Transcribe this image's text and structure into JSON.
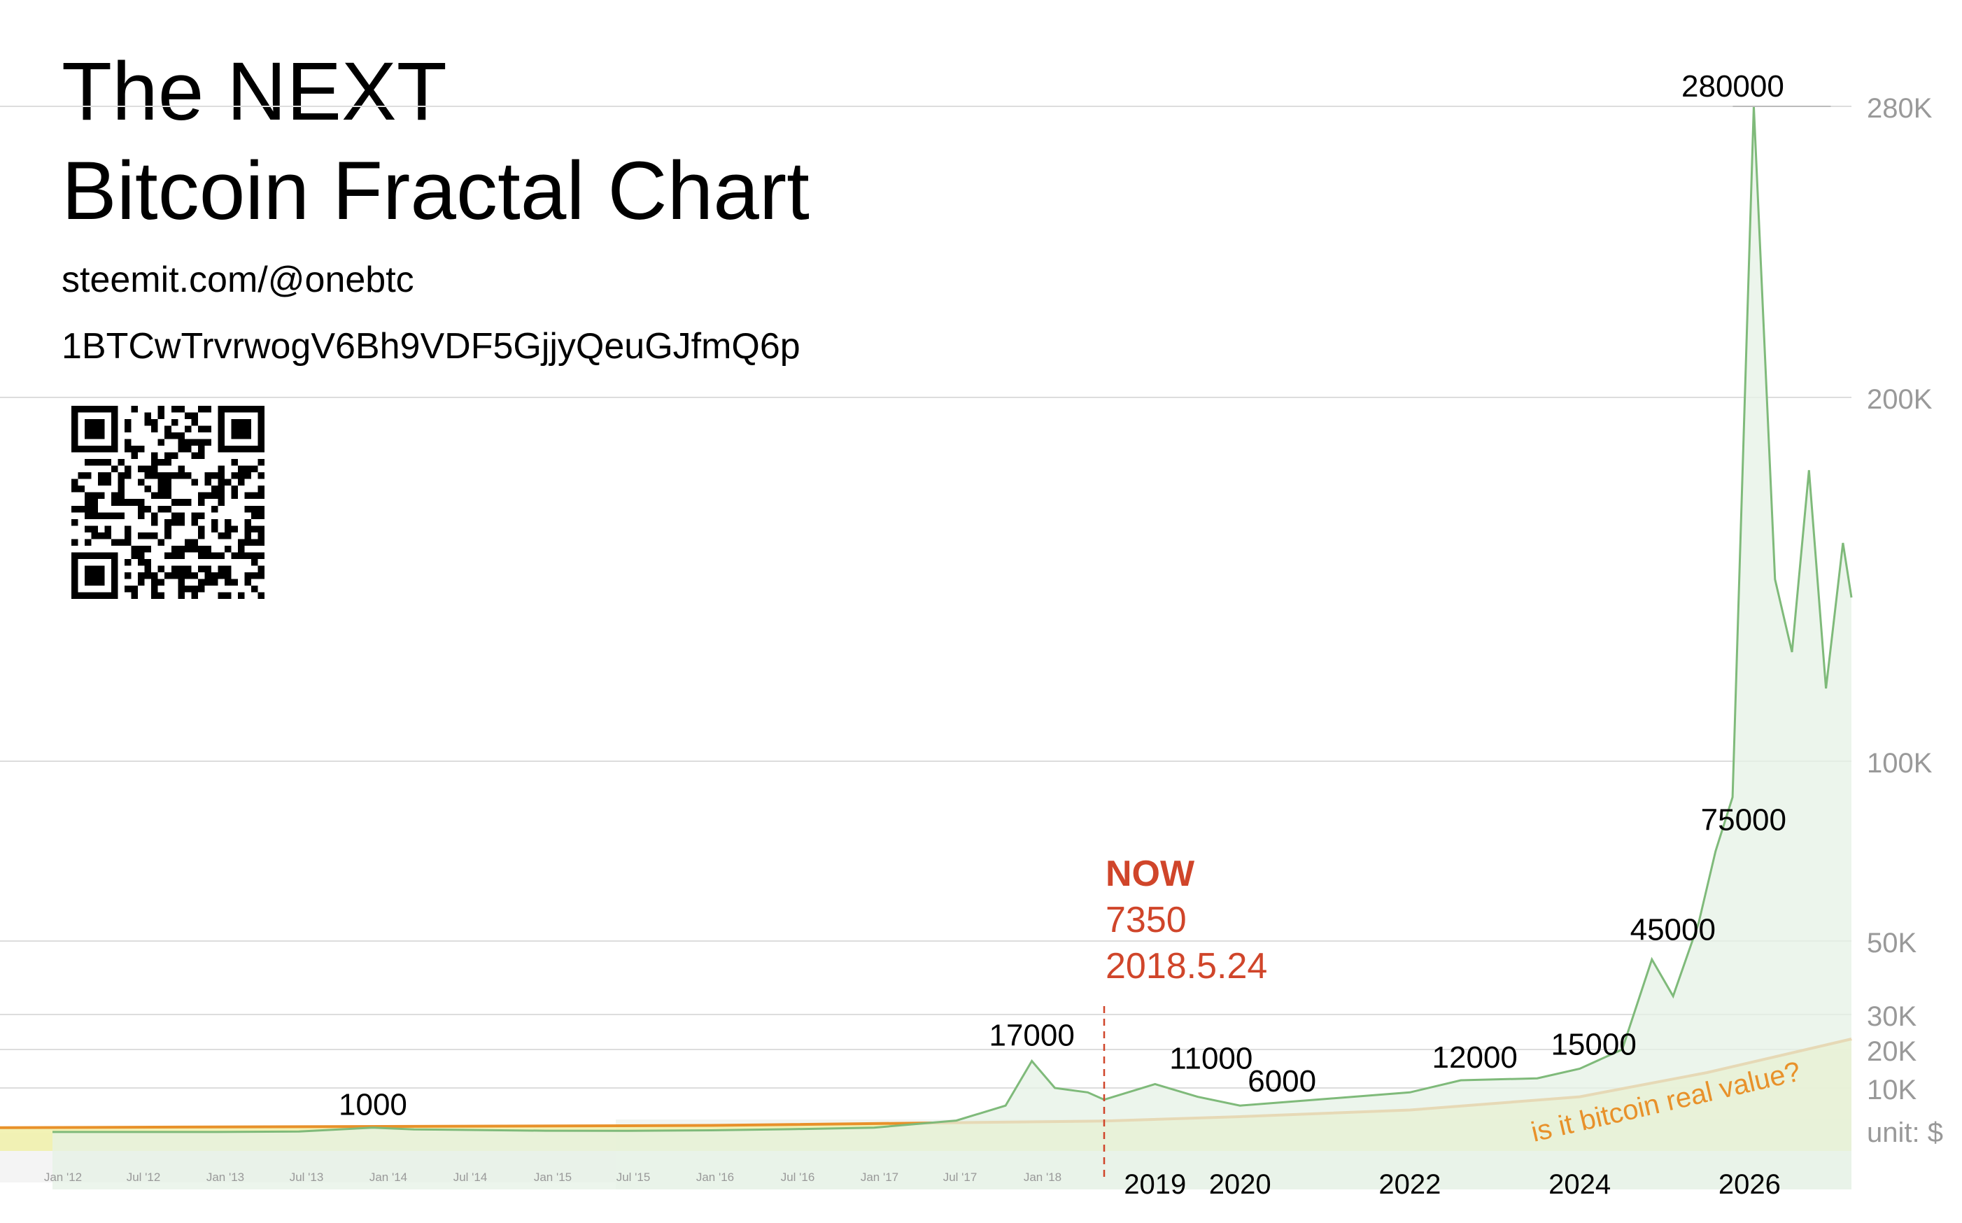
{
  "header": {
    "title_line1": "The NEXT",
    "title_line2": "Bitcoin Fractal Chart",
    "site": "steemit.com/@onebtc",
    "address": "1BTCwTrvrwogV6Bh9VDF5GjjyQeuGJfmQ6p"
  },
  "colors": {
    "price_line": "#7fba7a",
    "price_fill": "#e6f1e6",
    "trend_line": "#e8912a",
    "trend_fill": "#f0f0a8",
    "now_marker": "#d0452a",
    "gridline": "#dddddd",
    "axis_text": "#999999"
  },
  "chart_data": {
    "type": "line",
    "title": "The NEXT Bitcoin Fractal Chart",
    "unit_label": "unit: $",
    "y_ticks": [
      {
        "value": 10000,
        "label": "10K"
      },
      {
        "value": 20000,
        "label": "20K"
      },
      {
        "value": 30000,
        "label": "30K"
      },
      {
        "value": 50000,
        "label": "50K"
      },
      {
        "value": 100000,
        "label": "100K"
      },
      {
        "value": 200000,
        "label": "200K"
      },
      {
        "value": 280000,
        "label": "280K"
      }
    ],
    "ylim": [
      0,
      280000
    ],
    "x_ticks_small": [
      "Jan '12",
      "Jul '12",
      "Jan '13",
      "Jul '13",
      "Jan '14",
      "Jul '14",
      "Jan '15",
      "Jul '15",
      "Jan '16",
      "Jul '16",
      "Jan '17",
      "Jul '17",
      "Jan '18"
    ],
    "x_ticks_large": [
      "2019",
      "2020",
      "2022",
      "2024",
      "2026"
    ],
    "series": [
      {
        "name": "price",
        "points": [
          [
            2012.0,
            10
          ],
          [
            2013.0,
            15
          ],
          [
            2013.5,
            120
          ],
          [
            2013.95,
            1000
          ],
          [
            2014.2,
            600
          ],
          [
            2015.0,
            300
          ],
          [
            2015.5,
            280
          ],
          [
            2016.0,
            400
          ],
          [
            2016.5,
            650
          ],
          [
            2017.0,
            1000
          ],
          [
            2017.5,
            2600
          ],
          [
            2017.8,
            6000
          ],
          [
            2017.96,
            17000
          ],
          [
            2018.1,
            10000
          ],
          [
            2018.3,
            9000
          ],
          [
            2018.4,
            7350
          ],
          [
            2019.0,
            11000
          ],
          [
            2019.5,
            8000
          ],
          [
            2020.0,
            6000
          ],
          [
            2021.0,
            7500
          ],
          [
            2022.0,
            9000
          ],
          [
            2022.6,
            12000
          ],
          [
            2023.5,
            12500
          ],
          [
            2024.0,
            15000
          ],
          [
            2024.5,
            20000
          ],
          [
            2024.85,
            45000
          ],
          [
            2025.1,
            35000
          ],
          [
            2025.4,
            55000
          ],
          [
            2025.6,
            75000
          ],
          [
            2025.8,
            90000
          ],
          [
            2026.05,
            280000
          ],
          [
            2026.3,
            150000
          ],
          [
            2026.5,
            130000
          ],
          [
            2026.7,
            180000
          ],
          [
            2026.9,
            120000
          ],
          [
            2027.1,
            160000
          ],
          [
            2027.2,
            145000
          ]
        ]
      },
      {
        "name": "is it bitcoin real value?",
        "points": [
          [
            2011.7,
            1000
          ],
          [
            2016.0,
            1500
          ],
          [
            2018.4,
            2500
          ],
          [
            2020.0,
            3500
          ],
          [
            2022.0,
            5000
          ],
          [
            2024.0,
            8000
          ],
          [
            2025.5,
            14000
          ],
          [
            2027.2,
            23000
          ]
        ]
      }
    ],
    "annotations": [
      {
        "text": "1000",
        "x": 2013.95,
        "y": 1000
      },
      {
        "text": "17000",
        "x": 2017.96,
        "y": 17000
      },
      {
        "text": "11000",
        "x": 2019.0,
        "y": 11000
      },
      {
        "text": "6000",
        "x": 2020.0,
        "y": 6000
      },
      {
        "text": "12000",
        "x": 2022.6,
        "y": 12000
      },
      {
        "text": "15000",
        "x": 2024.0,
        "y": 15000
      },
      {
        "text": "45000",
        "x": 2024.85,
        "y": 45000
      },
      {
        "text": "75000",
        "x": 2025.6,
        "y": 75000
      },
      {
        "text": "280000",
        "x": 2026.05,
        "y": 280000
      }
    ],
    "now_marker": {
      "label": "NOW",
      "value": "7350",
      "date": "2018.5.24",
      "x": 2018.4,
      "y": 7350
    },
    "trend_label": "is it bitcoin real value?",
    "grid": true
  }
}
